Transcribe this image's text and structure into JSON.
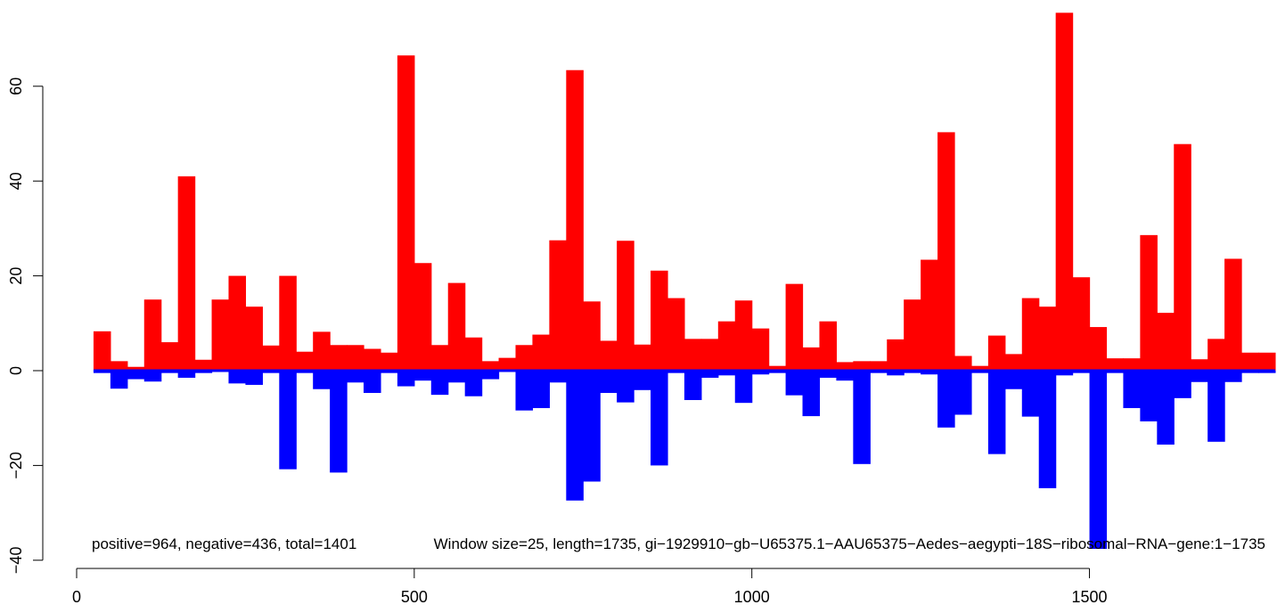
{
  "chart_data": {
    "type": "bar",
    "title": "",
    "xlabel": "",
    "ylabel": "",
    "xlim": [
      0,
      1800
    ],
    "ylim": [
      -40,
      75
    ],
    "x_ticks": [
      0,
      500,
      1000,
      1500
    ],
    "y_ticks": [
      -40,
      -20,
      0,
      20,
      40,
      60
    ],
    "grid": false,
    "bin_width": 25,
    "x_start": 25,
    "annotations": [
      "positive=964, negative=436, total=1401",
      "Window size=25, length=1735, gi−1929910−gb−U65375.1−AAU65375−Aedes−aegypti−18S−ribosomal−RNA−gene:1−1735"
    ],
    "series": [
      {
        "color": "#ff0000",
        "values": [
          8.3,
          2,
          0.8,
          15,
          6,
          41,
          2.3,
          15,
          20,
          13.5,
          5.3,
          20,
          4,
          8.2,
          5.4,
          5.4,
          4.6,
          3.8,
          66.5,
          22.7,
          5.4,
          18.5,
          7,
          2,
          2.7,
          5.4,
          7.6,
          27.5,
          63.4,
          14.6,
          6.3,
          27.4,
          5.5,
          21.1,
          15.3,
          6.7,
          6.7,
          10.4,
          14.8,
          8.9,
          1,
          18.3,
          4.9,
          10.4,
          1.8,
          2,
          2,
          6.6,
          15,
          23.4,
          50.3,
          3.1,
          1,
          7.4,
          3.5,
          15.3,
          13.5,
          75.5,
          19.7,
          9.2,
          2.6,
          2.6,
          28.6,
          12.2,
          47.8,
          2.4,
          6.7,
          23.6,
          3.8,
          3.8
        ]
      },
      {
        "color": "#0000ff",
        "values": [
          -0.5,
          -3.8,
          -1.8,
          -2.3,
          -0.5,
          -1.5,
          -0.5,
          0,
          -2.7,
          -3,
          -0.5,
          -20.8,
          -0.5,
          -3.9,
          -21.5,
          -2.5,
          -4.7,
          -0.5,
          -3.3,
          -2.1,
          -5.1,
          -2.5,
          -5.4,
          -1.8,
          0,
          -8.4,
          -7.9,
          -2.5,
          -27.4,
          -23.4,
          -4.7,
          -6.7,
          -4.1,
          -20,
          -0.5,
          -6.2,
          -1.5,
          -1,
          -6.8,
          -0.8,
          -0.5,
          -5.2,
          -9.6,
          -1.5,
          -2.1,
          -19.7,
          -0.5,
          -1,
          -0.5,
          -0.8,
          -12,
          -9.3,
          -0.5,
          -17.6,
          -3.9,
          -9.7,
          -24.8,
          -1,
          -0.5,
          -37.6,
          -0.5,
          -7.9,
          -10.7,
          -15.6,
          -5.8,
          -2.4,
          -15,
          -2.4,
          -0.5,
          -0.5
        ]
      }
    ]
  }
}
